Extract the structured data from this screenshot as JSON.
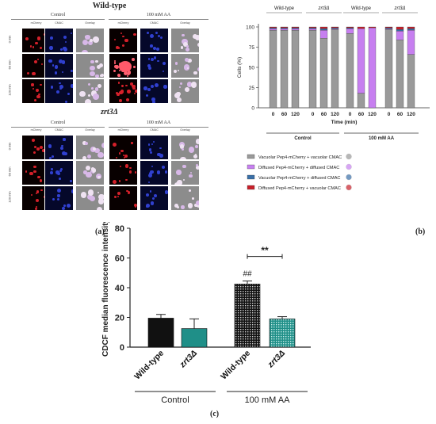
{
  "panel_a": {
    "caption": "(a)",
    "wildtype_title": "Wild-type",
    "mutant_title": "zrt3Δ",
    "conditions": [
      "Control",
      "100 mM AA"
    ],
    "columns": [
      "mCherry",
      "CMAC",
      "Overlay"
    ],
    "rows": [
      "0 min",
      "60 min",
      "120 min"
    ]
  },
  "panel_b": {
    "caption": "(b)",
    "legend": [
      {
        "label": "Vacuolar Pep4-mCherry + vacuolar CMAC",
        "color": "#9a9a9a"
      },
      {
        "label": "Diffused Pep4-mCherry + diffused CMAC",
        "color": "#c77ff0"
      },
      {
        "label": "Vacuolar Pep4-mCherry + diffused CMAC",
        "color": "#3a6fa8"
      },
      {
        "label": "Diffused Pep4-mCherry + vacuolar CMAC",
        "color": "#c8202a"
      }
    ],
    "chart_data": {
      "type": "bar",
      "stacked": true,
      "ylabel": "Cells (%)",
      "xlabel": "Time (min)",
      "ylim": [
        0,
        100
      ],
      "yticks": [
        0,
        25,
        50,
        75,
        100
      ],
      "x_tick_labels": [
        "0",
        "60",
        "120"
      ],
      "group_labels": [
        "Wild-type",
        "zrt3Δ",
        "Wild-type",
        "zrt3Δ"
      ],
      "condition_labels": [
        "Control",
        "100 mM AA"
      ],
      "groups": [
        {
          "name": "Wild-type",
          "condition": "Control",
          "bars": [
            {
              "time": "0",
              "values": [
                96,
                2,
                1,
                1
              ]
            },
            {
              "time": "60",
              "values": [
                96,
                2,
                1,
                1
              ]
            },
            {
              "time": "120",
              "values": [
                96,
                2,
                1,
                1
              ]
            }
          ]
        },
        {
          "name": "zrt3Δ",
          "condition": "Control",
          "bars": [
            {
              "time": "0",
              "values": [
                96,
                2,
                1,
                1
              ]
            },
            {
              "time": "60",
              "values": [
                86,
                10,
                2,
                2
              ]
            },
            {
              "time": "120",
              "values": [
                97,
                1,
                1,
                1
              ]
            }
          ]
        },
        {
          "name": "Wild-type",
          "condition": "100 mM AA",
          "bars": [
            {
              "time": "0",
              "values": [
                92,
                6,
                1,
                1
              ]
            },
            {
              "time": "60",
              "values": [
                18,
                80,
                0,
                2
              ]
            },
            {
              "time": "120",
              "values": [
                0,
                99,
                0,
                1
              ]
            }
          ]
        },
        {
          "name": "zrt3Δ",
          "condition": "100 mM AA",
          "bars": [
            {
              "time": "0",
              "values": [
                97,
                1,
                1,
                1
              ]
            },
            {
              "time": "60",
              "values": [
                84,
                11,
                2,
                3
              ]
            },
            {
              "time": "120",
              "values": [
                66,
                30,
                2,
                2
              ]
            }
          ]
        }
      ]
    }
  },
  "panel_c": {
    "caption": "(c)",
    "chart_data": {
      "type": "bar",
      "ylabel": "CDCF median fluorescence intensity",
      "ylim": [
        0,
        80
      ],
      "yticks": [
        0,
        20,
        40,
        60,
        80
      ],
      "categories": [
        "Wild-type",
        "zrt3Δ",
        "Wild-type",
        "zrt3Δ"
      ],
      "condition_labels": [
        "Control",
        "100 mM AA"
      ],
      "values": [
        19.5,
        12.5,
        42.5,
        19
      ],
      "errors": [
        2.5,
        6.5,
        2,
        1.5
      ],
      "colors": [
        "#111111",
        "#1f8f88",
        "#111111",
        "#1f8f88"
      ],
      "patterned": [
        false,
        false,
        true,
        true
      ],
      "annotations": [
        "##",
        "**"
      ]
    }
  }
}
